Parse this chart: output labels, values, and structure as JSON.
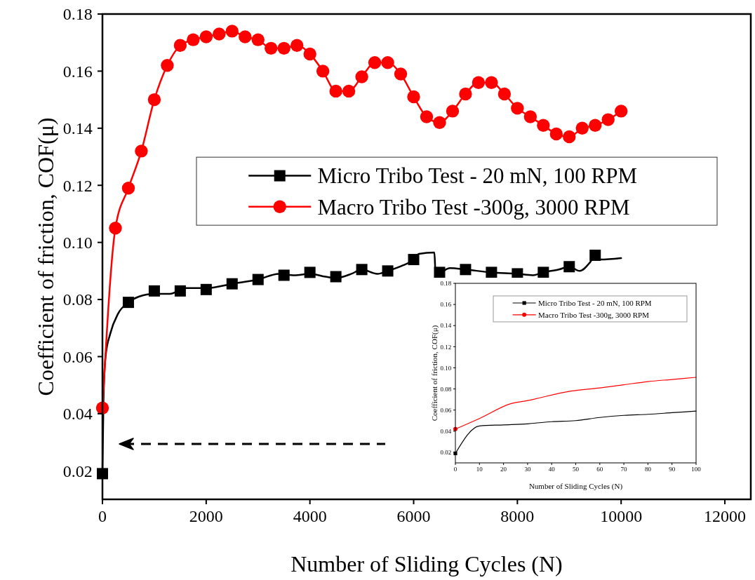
{
  "chart_data": [
    {
      "type": "line",
      "xlabel": "Number of Sliding Cycles (N)",
      "ylabel": "Coefficient of friction, COF(μ)",
      "xlim": [
        0,
        12500
      ],
      "xticks": [
        0,
        2000,
        4000,
        6000,
        8000,
        10000,
        12000
      ],
      "ylim": [
        0.01,
        0.18
      ],
      "yticks": [
        0.02,
        0.04,
        0.06,
        0.08,
        {
          "value": 0.1,
          "label": "0.10"
        },
        0.12,
        0.14,
        0.16,
        0.18
      ],
      "legend": "right",
      "series": [
        {
          "name": "Micro Tribo Test - 20 mN, 100 RPM",
          "type": "scatter",
          "color": "#000000",
          "marker": "square",
          "x": [
            0,
            500,
            1000,
            1500,
            2000,
            2500,
            3000,
            3500,
            4000,
            4500,
            5000,
            5500,
            6000,
            6500,
            7000,
            7500,
            8000,
            8500,
            9000,
            9500
          ],
          "values": [
            0.019,
            0.079,
            0.083,
            0.083,
            0.0835,
            0.0855,
            0.087,
            0.0885,
            0.0895,
            0.088,
            0.0905,
            0.09,
            0.094,
            0.0895,
            0.0905,
            0.0895,
            0.089,
            0.0895,
            0.0915,
            0.0955
          ]
        },
        {
          "color": "#000000",
          "marker": "none",
          "x": [
            0,
            20,
            60,
            150,
            300,
            500,
            700,
            1000,
            1300,
            1600,
            2000,
            2500,
            3000,
            3400,
            3700,
            4000,
            4300,
            4500,
            4800,
            5000,
            5300,
            5500,
            5800,
            6000,
            6100,
            6400,
            6420,
            6500,
            6700,
            7000,
            7500,
            8000,
            8300,
            8500,
            8800,
            9000,
            9200,
            9400,
            9500,
            9600,
            10000
          ],
          "values": [
            0.019,
            0.045,
            0.06,
            0.068,
            0.075,
            0.079,
            0.081,
            0.082,
            0.082,
            0.084,
            0.084,
            0.0855,
            0.087,
            0.089,
            0.0885,
            0.089,
            0.088,
            0.0875,
            0.089,
            0.0905,
            0.089,
            0.09,
            0.092,
            0.094,
            0.096,
            0.0965,
            0.09,
            0.0895,
            0.091,
            0.0905,
            0.0895,
            0.089,
            0.0885,
            0.0895,
            0.0905,
            0.0915,
            0.09,
            0.093,
            0.0955,
            0.094,
            0.0945
          ]
        },
        {
          "name": "Macro Tribo Test -300g, 3000 RPM",
          "color": "#ff0000",
          "marker": "circle",
          "x": [
            0,
            250,
            500,
            750,
            1000,
            1250,
            1500,
            1750,
            2000,
            2250,
            2500,
            2750,
            3000,
            3250,
            3500,
            3750,
            4000,
            4250,
            4500,
            4750,
            5000,
            5250,
            5500,
            5750,
            6000,
            6250,
            6500,
            6750,
            7000,
            7250,
            7500,
            7750,
            8000,
            8250,
            8500,
            8750,
            9000,
            9250,
            9500,
            9750,
            10000
          ],
          "values": [
            0.042,
            0.105,
            0.119,
            0.132,
            0.15,
            0.162,
            0.169,
            0.171,
            0.172,
            0.173,
            0.174,
            0.172,
            0.171,
            0.168,
            0.168,
            0.169,
            0.166,
            0.16,
            0.153,
            0.153,
            0.158,
            0.163,
            0.163,
            0.159,
            0.151,
            0.144,
            0.142,
            0.146,
            0.152,
            0.156,
            0.156,
            0.152,
            0.147,
            0.144,
            0.141,
            0.138,
            0.137,
            0.14,
            0.141,
            0.143,
            0.146
          ]
        }
      ]
    },
    {
      "type": "line",
      "xlabel": "Number of Sliding Cycles (N)",
      "ylabel": "Coefficient of friction, COF(μ)",
      "xlim": [
        0,
        100
      ],
      "xticks": [
        0,
        10,
        20,
        30,
        40,
        50,
        60,
        70,
        80,
        90,
        100
      ],
      "ylim": [
        0.01,
        0.18
      ],
      "yticks": [
        0.02,
        0.04,
        0.06,
        0.08,
        {
          "value": 0.1,
          "label": "0.10"
        },
        0.12,
        0.14,
        0.16,
        0.18
      ],
      "legend": "top right",
      "series": [
        {
          "name": "Micro Tribo Test - 20 mN, 100 RPM",
          "type": "scatter",
          "color": "#000000",
          "marker": "square",
          "x": [
            0
          ],
          "values": [
            0.019
          ]
        },
        {
          "color": "#000000",
          "marker": "none",
          "x": [
            0,
            10,
            20,
            30,
            40,
            50,
            60,
            70,
            80,
            90,
            100
          ],
          "values": [
            0.019,
            0.045,
            0.046,
            0.047,
            0.049,
            0.05,
            0.053,
            0.055,
            0.056,
            0.0575,
            0.059
          ]
        },
        {
          "name": "Macro Tribo Test -300g, 3000 RPM",
          "type": "scatter",
          "color": "#ff0000",
          "marker": "circle",
          "x": [
            0
          ],
          "values": [
            0.042
          ]
        },
        {
          "color": "#ff0000",
          "marker": "none",
          "x": [
            0,
            10,
            23,
            30,
            48,
            60,
            70,
            80,
            90,
            100
          ],
          "values": [
            0.042,
            0.052,
            0.066,
            0.069,
            0.078,
            0.081,
            0.084,
            0.087,
            0.089,
            0.091
          ]
        }
      ]
    }
  ]
}
